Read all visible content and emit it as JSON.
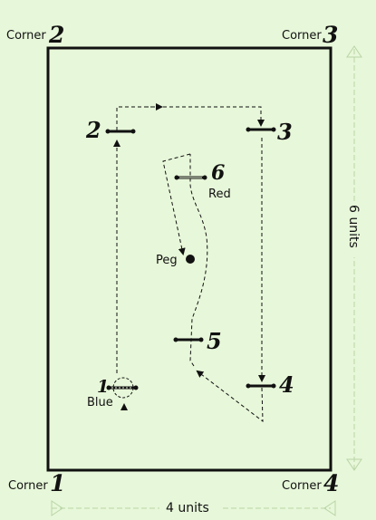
{
  "corners": [
    {
      "label": "Corner",
      "number": "1"
    },
    {
      "label": "Corner",
      "number": "2"
    },
    {
      "label": "Corner",
      "number": "3"
    },
    {
      "label": "Corner",
      "number": "4"
    }
  ],
  "stations": [
    {
      "number": "1",
      "sublabel": "Blue"
    },
    {
      "number": "2",
      "sublabel": ""
    },
    {
      "number": "3",
      "sublabel": ""
    },
    {
      "number": "4",
      "sublabel": ""
    },
    {
      "number": "5",
      "sublabel": ""
    },
    {
      "number": "6",
      "sublabel": "Red"
    }
  ],
  "peg": {
    "label": "Peg"
  },
  "dimensions": {
    "width_label": "4 units",
    "height_label": "6 units"
  },
  "colors": {
    "background": "#e7f7d9",
    "ink": "#111111",
    "dimension_guide": "#b9d4a6"
  }
}
